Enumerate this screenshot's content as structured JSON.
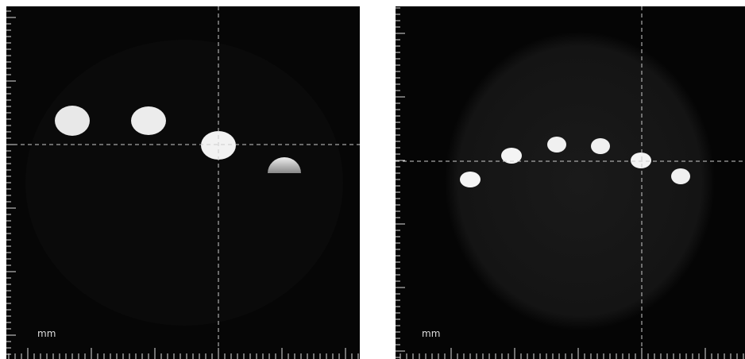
{
  "panels": [
    {
      "unit": "mm"
    },
    {
      "unit": "mm"
    }
  ]
}
